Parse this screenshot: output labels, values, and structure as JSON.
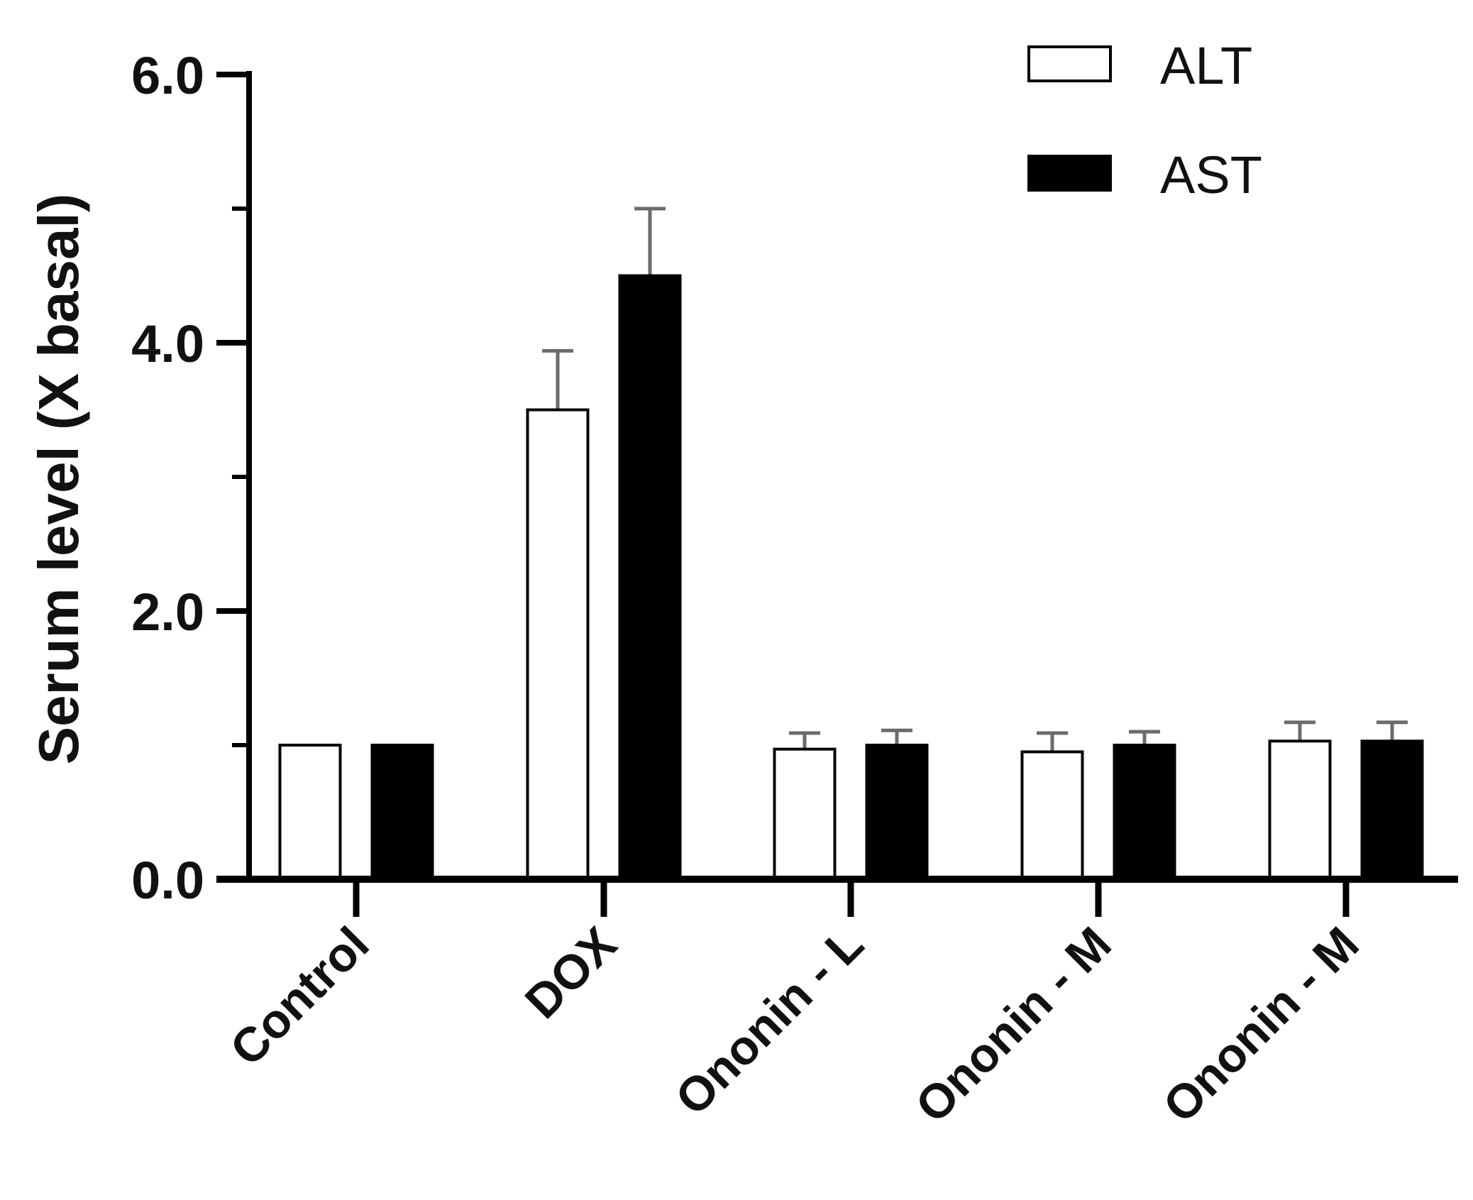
{
  "chart_data": {
    "type": "bar",
    "title": "",
    "xlabel": "",
    "ylabel": "Serum level (X basal)",
    "ylim": [
      0,
      6
    ],
    "yticks_major": [
      0,
      2,
      4,
      6
    ],
    "yticks_minor": [
      1,
      3,
      5
    ],
    "ytick_labels": [
      "0.0",
      "2.0",
      "4.0",
      "6.0"
    ],
    "categories": [
      "Control",
      "DOX",
      "Ononin - L",
      "Ononin - M",
      "Ononin - M"
    ],
    "series": [
      {
        "name": "ALT",
        "fill": "#ffffff",
        "values": [
          1.0,
          3.5,
          0.97,
          0.95,
          1.03
        ],
        "errors": [
          0.0,
          0.44,
          0.12,
          0.14,
          0.14
        ]
      },
      {
        "name": "AST",
        "fill": "#000000",
        "values": [
          1.0,
          4.5,
          1.0,
          1.0,
          1.03
        ],
        "errors": [
          0.0,
          0.5,
          0.11,
          0.1,
          0.14
        ]
      }
    ],
    "legend_position": "top-right",
    "colors": {
      "axis": "#000000",
      "error_bar": "#6b6b6b"
    }
  }
}
